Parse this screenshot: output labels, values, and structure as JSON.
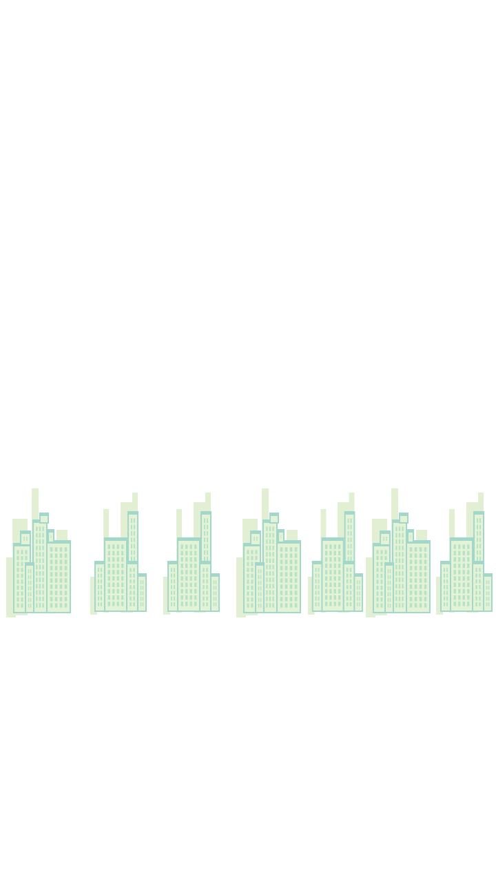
{
  "screen": {
    "background": "#ffffff"
  },
  "skyline": {
    "illustration": "city-skyline",
    "colors": {
      "back_building": "#e2efd2",
      "front_fill": "#e4f2d6",
      "outline": "#a2d8cc",
      "window": "#b6e2c8",
      "window_light": "#ffffff"
    },
    "clusters": [
      {
        "variant": "A",
        "icon": "building-cluster-icon"
      },
      {
        "variant": "B",
        "icon": "building-cluster-icon"
      },
      {
        "variant": "B",
        "icon": "building-cluster-icon"
      },
      {
        "variant": "A",
        "icon": "building-cluster-icon"
      },
      {
        "variant": "B",
        "icon": "building-cluster-icon"
      },
      {
        "variant": "A",
        "icon": "building-cluster-icon"
      },
      {
        "variant": "B",
        "icon": "building-cluster-icon"
      }
    ]
  }
}
